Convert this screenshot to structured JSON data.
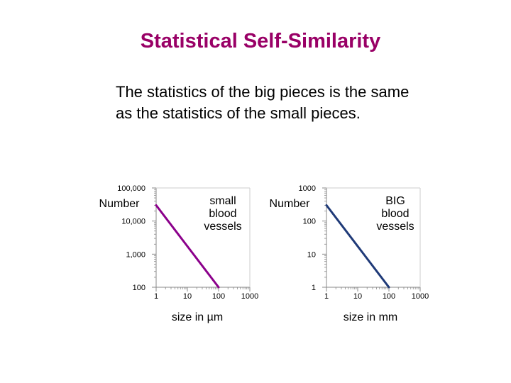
{
  "slide": {
    "title": "Statistical Self-Similarity",
    "body": [
      "The statistics of the big pieces is the same",
      "as the statistics of the small pieces."
    ]
  },
  "chart_data": [
    {
      "type": "line",
      "scale": "log-log",
      "ylabel": "Number",
      "xlabel": "size in µm",
      "annotation": [
        "small",
        "blood",
        "vessels"
      ],
      "yticks": [
        "100,000",
        "10,000",
        "1,000",
        "100"
      ],
      "ytick_values": [
        100000,
        10000,
        1000,
        100
      ],
      "xticks": [
        "1",
        "10",
        "100",
        "1000"
      ],
      "xtick_values": [
        1,
        10,
        100,
        1000
      ],
      "xlim": [
        1,
        1000
      ],
      "ylim": [
        100,
        100000
      ],
      "grid": false,
      "color": "#8B008B",
      "series": [
        {
          "x": [
            1,
            100
          ],
          "y": [
            30000,
            100
          ]
        }
      ]
    },
    {
      "type": "line",
      "scale": "log-log",
      "ylabel": "Number",
      "xlabel": "size in mm",
      "annotation": [
        "BIG",
        "blood",
        "vessels"
      ],
      "yticks": [
        "1000",
        "100",
        "10",
        "1"
      ],
      "ytick_values": [
        1000,
        100,
        10,
        1
      ],
      "xticks": [
        "1",
        "10",
        "100",
        "1000"
      ],
      "xtick_values": [
        1,
        10,
        100,
        1000
      ],
      "xlim": [
        1,
        1000
      ],
      "ylim": [
        1,
        1000
      ],
      "grid": false,
      "color": "#1F3A78",
      "series": [
        {
          "x": [
            1,
            100
          ],
          "y": [
            300,
            1
          ]
        }
      ]
    }
  ]
}
